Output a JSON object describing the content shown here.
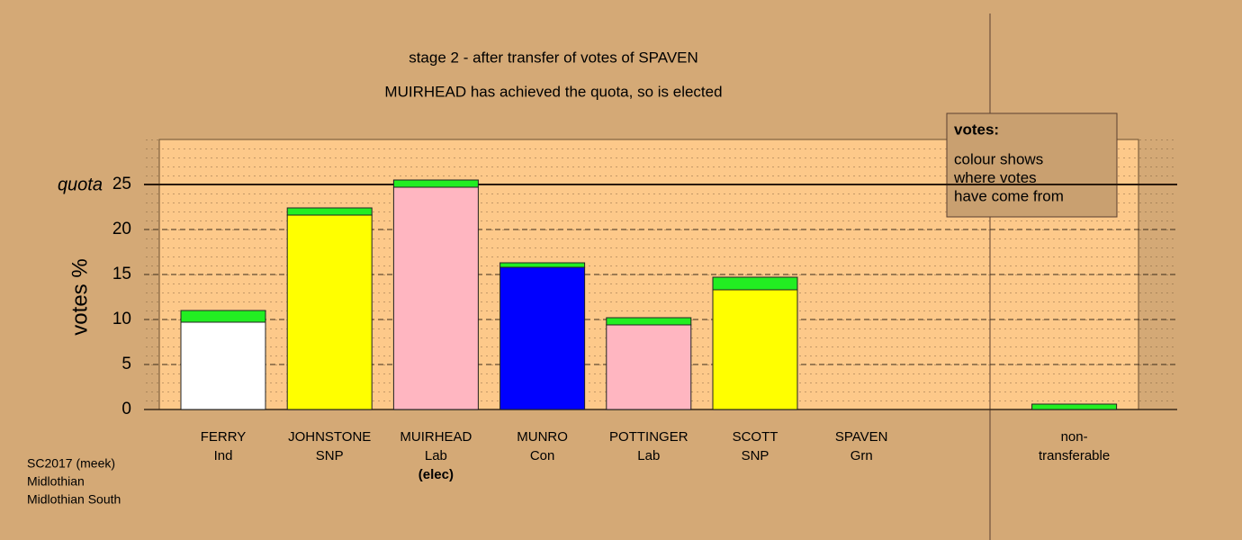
{
  "chart_data": {
    "type": "stacked_bar",
    "title": "stage 2 - after transfer of votes of SPAVEN",
    "subtitle": "MUIRHEAD has achieved the quota, so is elected",
    "y_label": "votes %",
    "categories": [
      "FERRY",
      "JOHNSTONE",
      "MUIRHEAD",
      "MUNRO",
      "POTTINGER",
      "SCOTT",
      "SPAVEN",
      "non-"
    ],
    "parties": [
      "Ind",
      "SNP",
      "Lab",
      "Con",
      "Lab",
      "SNP",
      "Grn",
      "transferable"
    ],
    "elected_note": {
      "index": 2,
      "label": "(elec)"
    },
    "series": [
      {
        "colors": [
          "#ffffff",
          "#ffff00",
          "#ffb6c1",
          "#0000ff",
          "#ffb6c1",
          "#ffff00",
          "#00ff00",
          "#22ee22"
        ],
        "values": [
          9.7,
          21.6,
          24.7,
          15.8,
          9.4,
          13.3,
          0,
          0
        ]
      },
      {
        "color": "#22ee22",
        "values": [
          1.3,
          0.8,
          0.8,
          0.5,
          0.8,
          1.4,
          0,
          0.6
        ]
      }
    ],
    "ylim": [
      0,
      30
    ],
    "yticks": [
      0,
      5,
      10,
      15,
      20,
      25
    ],
    "quota": {
      "value": 25,
      "label": "quota"
    },
    "legend_note": {
      "title": "votes:",
      "lines": [
        "colour shows",
        "where votes",
        "have come from"
      ]
    },
    "footer": [
      "SC2017 (meek)",
      "Midlothian",
      "Midlothian South"
    ]
  }
}
